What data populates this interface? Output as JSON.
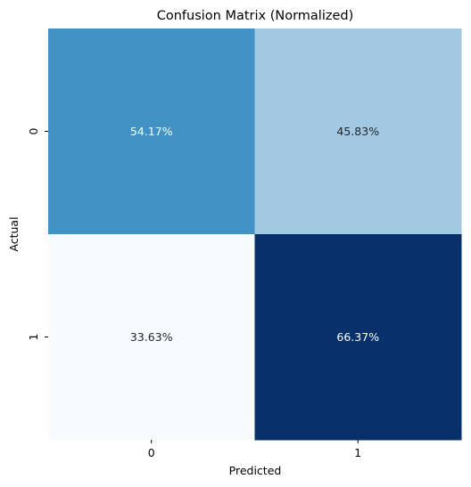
{
  "chart_data": {
    "type": "heatmap",
    "title": "Confusion Matrix (Normalized)",
    "xlabel": "Predicted",
    "ylabel": "Actual",
    "x_categories": [
      "0",
      "1"
    ],
    "y_categories": [
      "0",
      "1"
    ],
    "values": [
      [
        0.5417,
        0.4583
      ],
      [
        0.3363,
        0.6637
      ]
    ],
    "annotations": [
      [
        "54.17%",
        "45.83%"
      ],
      [
        "33.63%",
        "66.37%"
      ]
    ],
    "colormap": "Blues",
    "cell_colors": [
      [
        "#4292c6",
        "#a2c9e1"
      ],
      [
        "#f7fbff",
        "#08306b"
      ]
    ],
    "annotation_colors": [
      [
        "#ffffff",
        "#262626"
      ],
      [
        "#262626",
        "#ffffff"
      ]
    ],
    "colorbar": false,
    "grid": false
  }
}
